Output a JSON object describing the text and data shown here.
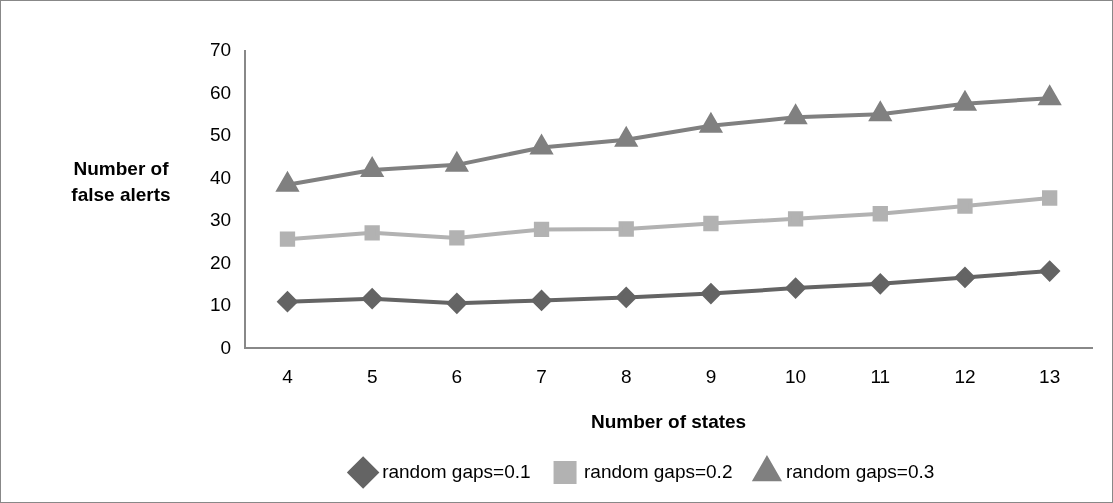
{
  "chart_data": {
    "type": "line",
    "xlabel": "Number of states",
    "ylabel": "Number of false alerts",
    "categories": [
      "4",
      "5",
      "6",
      "7",
      "8",
      "9",
      "10",
      "11",
      "12",
      "13"
    ],
    "series": [
      {
        "name": "random gaps=0.1",
        "color": "#646464",
        "marker": "diamond",
        "values": [
          11.0,
          11.7,
          10.6,
          11.3,
          12.0,
          12.9,
          14.2,
          15.2,
          16.7,
          18.2
        ]
      },
      {
        "name": "random gaps=0.2",
        "color": "#b2b2b2",
        "marker": "square",
        "values": [
          25.7,
          27.2,
          26.0,
          28.0,
          28.1,
          29.4,
          30.5,
          31.7,
          33.5,
          35.4
        ]
      },
      {
        "name": "random gaps=0.3",
        "color": "#808080",
        "marker": "triangle",
        "values": [
          38.5,
          42.0,
          43.2,
          47.3,
          49.1,
          52.4,
          54.4,
          55.1,
          57.6,
          58.9
        ]
      }
    ],
    "ylim": [
      0,
      70
    ],
    "yticks": [
      0,
      10,
      20,
      30,
      40,
      50,
      60,
      70
    ],
    "grid": false,
    "legend": "bottom",
    "line_style": "solid"
  }
}
